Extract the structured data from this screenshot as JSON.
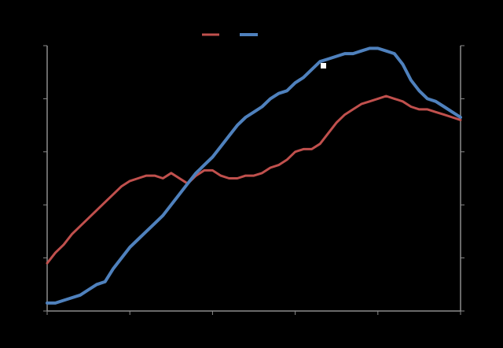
{
  "colors": {
    "background": "#000000",
    "axis": "#8c8c8c",
    "series_red": "#c0504d",
    "series_blue": "#4f81bd",
    "marker": "#ffffff"
  },
  "chart_data": {
    "type": "line",
    "title": "",
    "xlabel": "",
    "ylabel": "",
    "xlim": [
      0,
      100
    ],
    "ylim": [
      0,
      100
    ],
    "grid": false,
    "legend_position": "top-center",
    "x_ticks": [
      0,
      20,
      40,
      60,
      80,
      100
    ],
    "y_ticks": [
      0,
      20,
      40,
      60,
      80,
      100
    ],
    "series": [
      {
        "color": "#c0504d",
        "x": [
          0,
          2,
          4,
          6,
          8,
          10,
          12,
          14,
          16,
          18,
          20,
          22,
          24,
          26,
          28,
          30,
          32,
          34,
          36,
          38,
          40,
          42,
          44,
          46,
          48,
          50,
          52,
          54,
          56,
          58,
          60,
          62,
          64,
          66,
          68,
          70,
          72,
          74,
          76,
          78,
          80,
          82,
          84,
          86,
          88,
          90,
          92,
          94,
          96,
          98,
          100
        ],
        "values": [
          18,
          22,
          25,
          29,
          32,
          35,
          38,
          41,
          44,
          47,
          49,
          50,
          51,
          51,
          50,
          52,
          50,
          48,
          51,
          53,
          53,
          51,
          50,
          50,
          51,
          51,
          52,
          54,
          55,
          57,
          60,
          61,
          61,
          63,
          67,
          71,
          74,
          76,
          78,
          79,
          80,
          81,
          80,
          79,
          77,
          76,
          76,
          75,
          74,
          73,
          72
        ]
      },
      {
        "color": "#4f81bd",
        "x": [
          0,
          2,
          4,
          6,
          8,
          10,
          12,
          14,
          16,
          18,
          20,
          22,
          24,
          26,
          28,
          30,
          32,
          34,
          36,
          38,
          40,
          42,
          44,
          46,
          48,
          50,
          52,
          54,
          56,
          58,
          60,
          62,
          64,
          66,
          68,
          70,
          72,
          74,
          76,
          78,
          80,
          82,
          84,
          86,
          88,
          90,
          92,
          94,
          96,
          98,
          100
        ],
        "values": [
          3,
          3,
          4,
          5,
          6,
          8,
          10,
          11,
          16,
          20,
          24,
          27,
          30,
          33,
          36,
          40,
          44,
          48,
          52,
          55,
          58,
          62,
          66,
          70,
          73,
          75,
          77,
          80,
          82,
          83,
          86,
          88,
          91,
          94,
          95,
          96,
          97,
          97,
          98,
          99,
          99,
          98,
          97,
          93,
          87,
          83,
          80,
          79,
          77,
          75,
          73
        ]
      }
    ]
  }
}
